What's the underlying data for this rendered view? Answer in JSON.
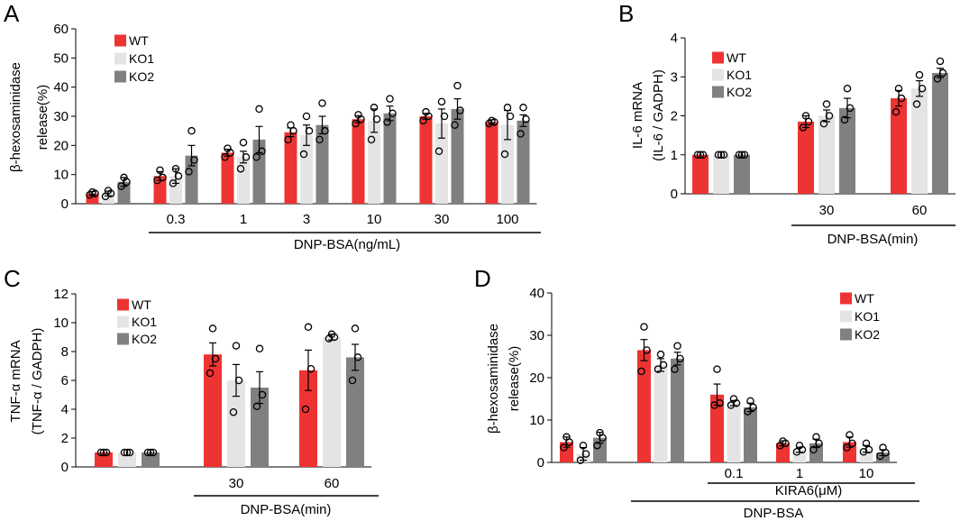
{
  "colors": {
    "WT": "#ee3333",
    "KO1": "#e4e4e4",
    "KO2": "#808080",
    "axis": "#000000"
  },
  "chart_data": [
    {
      "id": "A",
      "type": "bar",
      "panel_label": "A",
      "title": "",
      "ylabel_lines": [
        "β-hexosaminidase",
        "release(%)"
      ],
      "xlabel": "DNP-BSA(ng/mL)",
      "ylim": [
        0,
        60
      ],
      "yticks": [
        0,
        10,
        20,
        30,
        40,
        50,
        60
      ],
      "legend": [
        "WT",
        "KO1",
        "KO2"
      ],
      "legend_position": "top-left",
      "categories": [
        "",
        "0.3",
        "1",
        "3",
        "10",
        "30",
        "100"
      ],
      "series": [
        {
          "name": "WT",
          "values": [
            3.5,
            9.5,
            17.5,
            24.5,
            29,
            30,
            28
          ],
          "errors": [
            0.7,
            1.5,
            1.2,
            1.5,
            1.2,
            1.0,
            0.8
          ],
          "points": [
            [
              3,
              3.5,
              4
            ],
            [
              8,
              9,
              11.5
            ],
            [
              16,
              17.5,
              19
            ],
            [
              22,
              25,
              27
            ],
            [
              27.5,
              29,
              30.5
            ],
            [
              28.5,
              30,
              31.5
            ],
            [
              27.5,
              28,
              28.5
            ]
          ]
        },
        {
          "name": "KO1",
          "values": [
            3.5,
            9.5,
            16,
            23.5,
            28.5,
            27.5,
            27
          ],
          "errors": [
            0.8,
            2.5,
            2.0,
            3.5,
            4.0,
            5.0,
            5.0
          ],
          "points": [
            [
              2.5,
              3.5,
              4.5
            ],
            [
              7,
              9.5,
              12
            ],
            [
              12,
              16,
              21
            ],
            [
              17,
              25,
              30
            ],
            [
              22,
              29,
              33
            ],
            [
              18,
              30,
              35
            ],
            [
              17,
              30,
              33
            ]
          ]
        },
        {
          "name": "KO2",
          "values": [
            7.5,
            16.5,
            22,
            27,
            31,
            32.5,
            28.5
          ],
          "errors": [
            1.5,
            3.5,
            4.5,
            3.0,
            2.5,
            3.5,
            2.0
          ],
          "points": [
            [
              6,
              7.5,
              9
            ],
            [
              11,
              15,
              25
            ],
            [
              16,
              18,
              32.5
            ],
            [
              22,
              25,
              34.5
            ],
            [
              28,
              31,
              36
            ],
            [
              27,
              32,
              40.5
            ],
            [
              24,
              29,
              33
            ]
          ]
        }
      ]
    },
    {
      "id": "B",
      "type": "bar",
      "panel_label": "B",
      "title": "",
      "ylabel_lines": [
        "IL-6 mRNA",
        "(IL-6 / GADPH)"
      ],
      "xlabel": "DNP-BSA(min)",
      "ylim": [
        0,
        4
      ],
      "yticks": [
        0,
        1,
        2,
        3,
        4
      ],
      "legend": [
        "WT",
        "KO1",
        "KO2"
      ],
      "legend_position": "top-left",
      "categories": [
        "",
        "30",
        "60"
      ],
      "series": [
        {
          "name": "WT",
          "values": [
            1.0,
            1.85,
            2.45
          ],
          "errors": [
            0.0,
            0.15,
            0.2
          ],
          "points": [
            [
              1,
              1,
              1
            ],
            [
              1.7,
              1.85,
              2.0
            ],
            [
              2.1,
              2.45,
              2.7
            ]
          ]
        },
        {
          "name": "KO1",
          "values": [
            1.0,
            2.0,
            2.7
          ],
          "errors": [
            0.0,
            0.15,
            0.2
          ],
          "points": [
            [
              1,
              1,
              1
            ],
            [
              1.8,
              2.0,
              2.3
            ],
            [
              2.3,
              2.7,
              3.05
            ]
          ]
        },
        {
          "name": "KO2",
          "values": [
            1.0,
            2.2,
            3.1
          ],
          "errors": [
            0.0,
            0.25,
            0.12
          ],
          "points": [
            [
              1,
              1,
              1
            ],
            [
              1.9,
              2.2,
              2.7
            ],
            [
              2.95,
              3.1,
              3.4
            ]
          ]
        }
      ]
    },
    {
      "id": "C",
      "type": "bar",
      "panel_label": "C",
      "title": "",
      "ylabel_lines": [
        "TNF-α mRNA",
        "(TNF-α / GADPH)"
      ],
      "xlabel": "DNP-BSA(min)",
      "ylim": [
        0,
        12
      ],
      "yticks": [
        0,
        2,
        4,
        6,
        8,
        10,
        12
      ],
      "legend": [
        "WT",
        "KO1",
        "KO2"
      ],
      "legend_position": "top-left",
      "categories": [
        "",
        "30",
        "60"
      ],
      "series": [
        {
          "name": "WT",
          "values": [
            1.0,
            7.8,
            6.7
          ],
          "errors": [
            0.0,
            0.8,
            1.4
          ],
          "points": [
            [
              1,
              1,
              1
            ],
            [
              6.5,
              7.5,
              9.6
            ],
            [
              4.0,
              6.8,
              9.7
            ]
          ]
        },
        {
          "name": "KO1",
          "values": [
            1.0,
            6.0,
            9.0
          ],
          "errors": [
            0.0,
            1.1,
            0.2
          ],
          "points": [
            [
              1,
              1,
              1
            ],
            [
              3.8,
              6.0,
              8.4
            ],
            [
              8.9,
              9.0,
              9.2
            ]
          ]
        },
        {
          "name": "KO2",
          "values": [
            1.0,
            5.5,
            7.6
          ],
          "errors": [
            0.0,
            1.1,
            0.9
          ],
          "points": [
            [
              1,
              1,
              1
            ],
            [
              4.2,
              5.0,
              8.2
            ],
            [
              6.0,
              7.6,
              9.6
            ]
          ]
        }
      ]
    },
    {
      "id": "D",
      "type": "bar",
      "panel_label": "D",
      "title": "",
      "ylabel_lines": [
        "β-hexosaminidase",
        "release(%)"
      ],
      "xlabel": "DNP-BSA",
      "sublabel": "KIRA6(μM)",
      "ylim": [
        0,
        40
      ],
      "yticks": [
        0,
        10,
        20,
        30,
        40
      ],
      "legend": [
        "WT",
        "KO1",
        "KO2"
      ],
      "legend_position": "top-right",
      "categories": [
        "",
        "",
        "0.1",
        "1",
        "10"
      ],
      "series": [
        {
          "name": "WT",
          "values": [
            4.8,
            26.5,
            16.0,
            4.5,
            4.8
          ],
          "errors": [
            1.2,
            2.5,
            2.5,
            0.6,
            1.2
          ],
          "points": [
            [
              3.5,
              4.8,
              6.0
            ],
            [
              21.5,
              26.5,
              32.0
            ],
            [
              13.5,
              14.0,
              22.0
            ],
            [
              4.0,
              4.5,
              5.0
            ],
            [
              3.5,
              4.5,
              6.5
            ]
          ]
        },
        {
          "name": "KO1",
          "values": [
            2.0,
            23.0,
            14.0,
            3.0,
            3.2
          ],
          "errors": [
            1.5,
            1.5,
            0.6,
            0.6,
            0.8
          ],
          "points": [
            [
              0.5,
              2.0,
              4.0
            ],
            [
              22.0,
              23.0,
              25.5
            ],
            [
              13.5,
              14.0,
              15.0
            ],
            [
              2.5,
              3.0,
              4.0
            ],
            [
              2.5,
              3.0,
              4.5
            ]
          ]
        },
        {
          "name": "KO2",
          "values": [
            5.8,
            24.5,
            13.0,
            4.5,
            2.3
          ],
          "errors": [
            1.3,
            1.5,
            1.0,
            1.0,
            0.7
          ],
          "points": [
            [
              4.0,
              5.8,
              7.0
            ],
            [
              22.0,
              24.5,
              27.5
            ],
            [
              12.0,
              13.0,
              14.5
            ],
            [
              3.0,
              4.5,
              6.0
            ],
            [
              1.5,
              2.3,
              3.5
            ]
          ]
        }
      ]
    }
  ]
}
